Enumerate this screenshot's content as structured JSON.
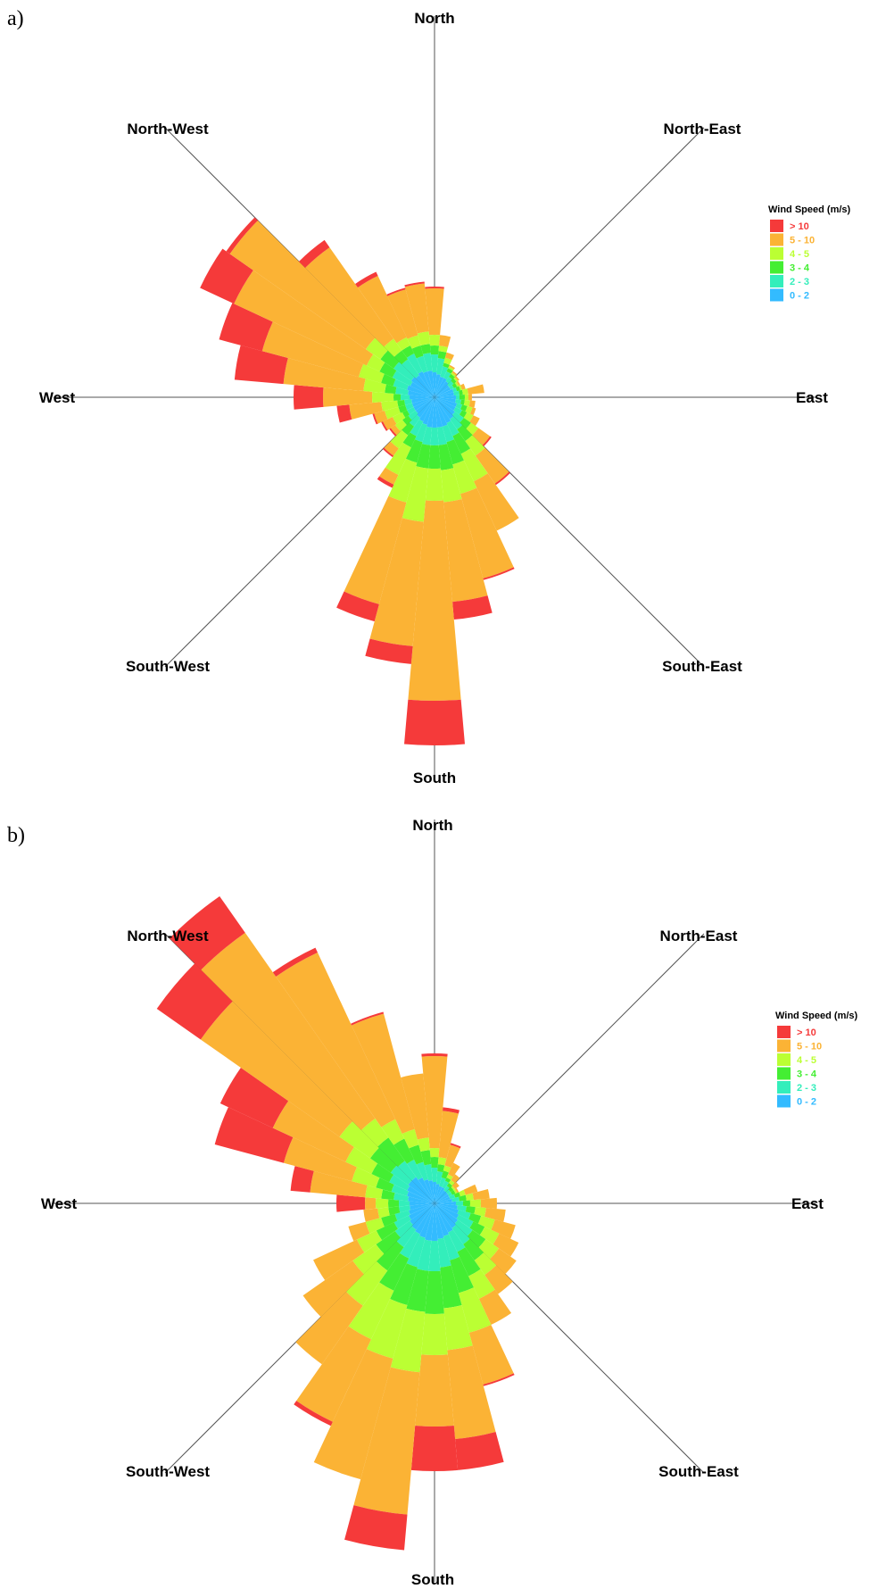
{
  "colors": {
    "gt10": "#f53a3a",
    "c5_10": "#fbb335",
    "c4_5": "#bbff33",
    "c3_4": "#44ee33",
    "c2_3": "#33eebb",
    "c0_2": "#33bbff",
    "axis": "#555555"
  },
  "chart_data": [
    {
      "type": "windrose",
      "panel_label": "a)",
      "directions": [
        "North",
        "North-East",
        "East",
        "South-East",
        "South",
        "South-West",
        "West",
        "North-West"
      ],
      "legend": {
        "title": "Wind Speed (m/s)",
        "position": "right",
        "entries": [
          "> 10",
          "5 - 10",
          "4 - 5",
          "3 - 4",
          "2 - 3",
          "0 - 2"
        ]
      },
      "sectors_deg": [
        0,
        10,
        20,
        30,
        40,
        50,
        60,
        70,
        80,
        90,
        100,
        110,
        120,
        130,
        140,
        150,
        160,
        170,
        180,
        190,
        200,
        210,
        220,
        230,
        240,
        250,
        260,
        270,
        280,
        290,
        300,
        310,
        320,
        330,
        340,
        350
      ],
      "series_order": [
        "0 - 2",
        "2 - 3",
        "3 - 4",
        "4 - 5",
        "5 - 10",
        "> 10"
      ],
      "cumulative": [
        [
          28,
          48,
          58,
          70,
          122,
          124
        ],
        [
          26,
          44,
          52,
          58,
          70,
          70
        ],
        [
          24,
          36,
          40,
          46,
          52,
          52
        ],
        [
          24,
          32,
          36,
          38,
          40,
          40
        ],
        [
          22,
          28,
          32,
          34,
          36,
          36
        ],
        [
          20,
          26,
          30,
          32,
          34,
          34
        ],
        [
          20,
          24,
          28,
          30,
          32,
          32
        ],
        [
          22,
          26,
          30,
          32,
          36,
          36
        ],
        [
          22,
          28,
          32,
          38,
          56,
          56
        ],
        [
          24,
          28,
          34,
          38,
          42,
          42
        ],
        [
          24,
          30,
          34,
          40,
          46,
          46
        ],
        [
          26,
          32,
          38,
          44,
          48,
          48
        ],
        [
          26,
          34,
          40,
          48,
          56,
          56
        ],
        [
          28,
          40,
          50,
          60,
          76,
          78
        ],
        [
          30,
          44,
          60,
          80,
          118,
          120
        ],
        [
          32,
          48,
          70,
          104,
          165,
          165
        ],
        [
          34,
          52,
          78,
          112,
          210,
          212
        ],
        [
          34,
          54,
          82,
          118,
          230,
          250
        ],
        [
          34,
          54,
          80,
          116,
          340,
          390
        ],
        [
          34,
          54,
          80,
          140,
          280,
          300
        ],
        [
          32,
          52,
          76,
          122,
          240,
          260
        ],
        [
          30,
          48,
          62,
          96,
          108,
          112
        ],
        [
          28,
          40,
          52,
          70,
          80,
          82
        ],
        [
          26,
          36,
          44,
          54,
          60,
          62
        ],
        [
          26,
          34,
          40,
          52,
          64,
          66
        ],
        [
          26,
          34,
          42,
          58,
          70,
          72
        ],
        [
          26,
          34,
          42,
          60,
          96,
          110
        ],
        [
          28,
          38,
          46,
          70,
          125,
          158
        ],
        [
          30,
          44,
          56,
          80,
          170,
          225
        ],
        [
          32,
          48,
          62,
          88,
          200,
          250
        ],
        [
          30,
          52,
          68,
          84,
          248,
          290
        ],
        [
          32,
          56,
          74,
          94,
          280,
          285
        ],
        [
          30,
          52,
          64,
          80,
          205,
          215
        ],
        [
          32,
          54,
          64,
          74,
          150,
          155
        ],
        [
          30,
          48,
          60,
          72,
          125,
          127
        ],
        [
          30,
          50,
          60,
          74,
          128,
          130
        ]
      ]
    },
    {
      "type": "windrose",
      "panel_label": "b)",
      "directions": [
        "North",
        "North-East",
        "East",
        "South-East",
        "South",
        "South-West",
        "West",
        "North-West"
      ],
      "legend": {
        "title": "Wind Speed (m/s)",
        "position": "right",
        "entries": [
          "> 10",
          "5 - 10",
          "4 - 5",
          "3 - 4",
          "2 - 3",
          "0 - 2"
        ]
      },
      "sectors_deg": [
        0,
        10,
        20,
        30,
        40,
        50,
        60,
        70,
        80,
        90,
        100,
        110,
        120,
        130,
        140,
        150,
        160,
        170,
        180,
        190,
        200,
        210,
        220,
        230,
        240,
        250,
        260,
        270,
        280,
        290,
        300,
        310,
        320,
        330,
        340,
        350
      ],
      "series_order": [
        "0 - 2",
        "2 - 3",
        "3 - 4",
        "4 - 5",
        "5 - 10",
        "> 10"
      ],
      "cumulative": [
        [
          24,
          40,
          52,
          62,
          165,
          168
        ],
        [
          22,
          36,
          44,
          52,
          104,
          108
        ],
        [
          20,
          30,
          38,
          44,
          68,
          70
        ],
        [
          20,
          28,
          32,
          36,
          50,
          50
        ],
        [
          18,
          24,
          28,
          32,
          40,
          40
        ],
        [
          18,
          22,
          26,
          28,
          34,
          34
        ],
        [
          18,
          22,
          26,
          28,
          30,
          30
        ],
        [
          18,
          24,
          30,
          36,
          50,
          50
        ],
        [
          20,
          28,
          36,
          44,
          62,
          62
        ],
        [
          24,
          32,
          40,
          52,
          70,
          70
        ],
        [
          26,
          36,
          46,
          58,
          80,
          80
        ],
        [
          28,
          42,
          54,
          70,
          94,
          94
        ],
        [
          30,
          48,
          62,
          80,
          104,
          104
        ],
        [
          32,
          52,
          70,
          88,
          112,
          112
        ],
        [
          34,
          56,
          78,
          98,
          124,
          124
        ],
        [
          36,
          60,
          90,
          118,
          150,
          150
        ],
        [
          38,
          66,
          104,
          150,
          210,
          212
        ],
        [
          40,
          72,
          118,
          165,
          265,
          300
        ],
        [
          42,
          76,
          124,
          170,
          250,
          300
        ],
        [
          42,
          76,
          122,
          190,
          350,
          390
        ],
        [
          40,
          74,
          118,
          180,
          320,
          320
        ],
        [
          38,
          68,
          108,
          168,
          270,
          275
        ],
        [
          36,
          60,
          92,
          140,
          220,
          220
        ],
        [
          34,
          54,
          80,
          112,
          180,
          180
        ],
        [
          32,
          50,
          72,
          96,
          150,
          150
        ],
        [
          30,
          46,
          62,
          80,
          100,
          100
        ],
        [
          28,
          40,
          52,
          64,
          80,
          80
        ],
        [
          28,
          40,
          52,
          66,
          78,
          110
        ],
        [
          30,
          46,
          60,
          78,
          140,
          162
        ],
        [
          32,
          50,
          68,
          96,
          175,
          255
        ],
        [
          34,
          56,
          78,
          110,
          200,
          265
        ],
        [
          36,
          60,
          88,
          130,
          320,
          380
        ],
        [
          36,
          58,
          90,
          116,
          370,
          420
        ],
        [
          32,
          54,
          80,
          104,
          310,
          316
        ],
        [
          28,
          48,
          68,
          86,
          220,
          222
        ],
        [
          26,
          44,
          60,
          74,
          146,
          146
        ]
      ]
    }
  ]
}
